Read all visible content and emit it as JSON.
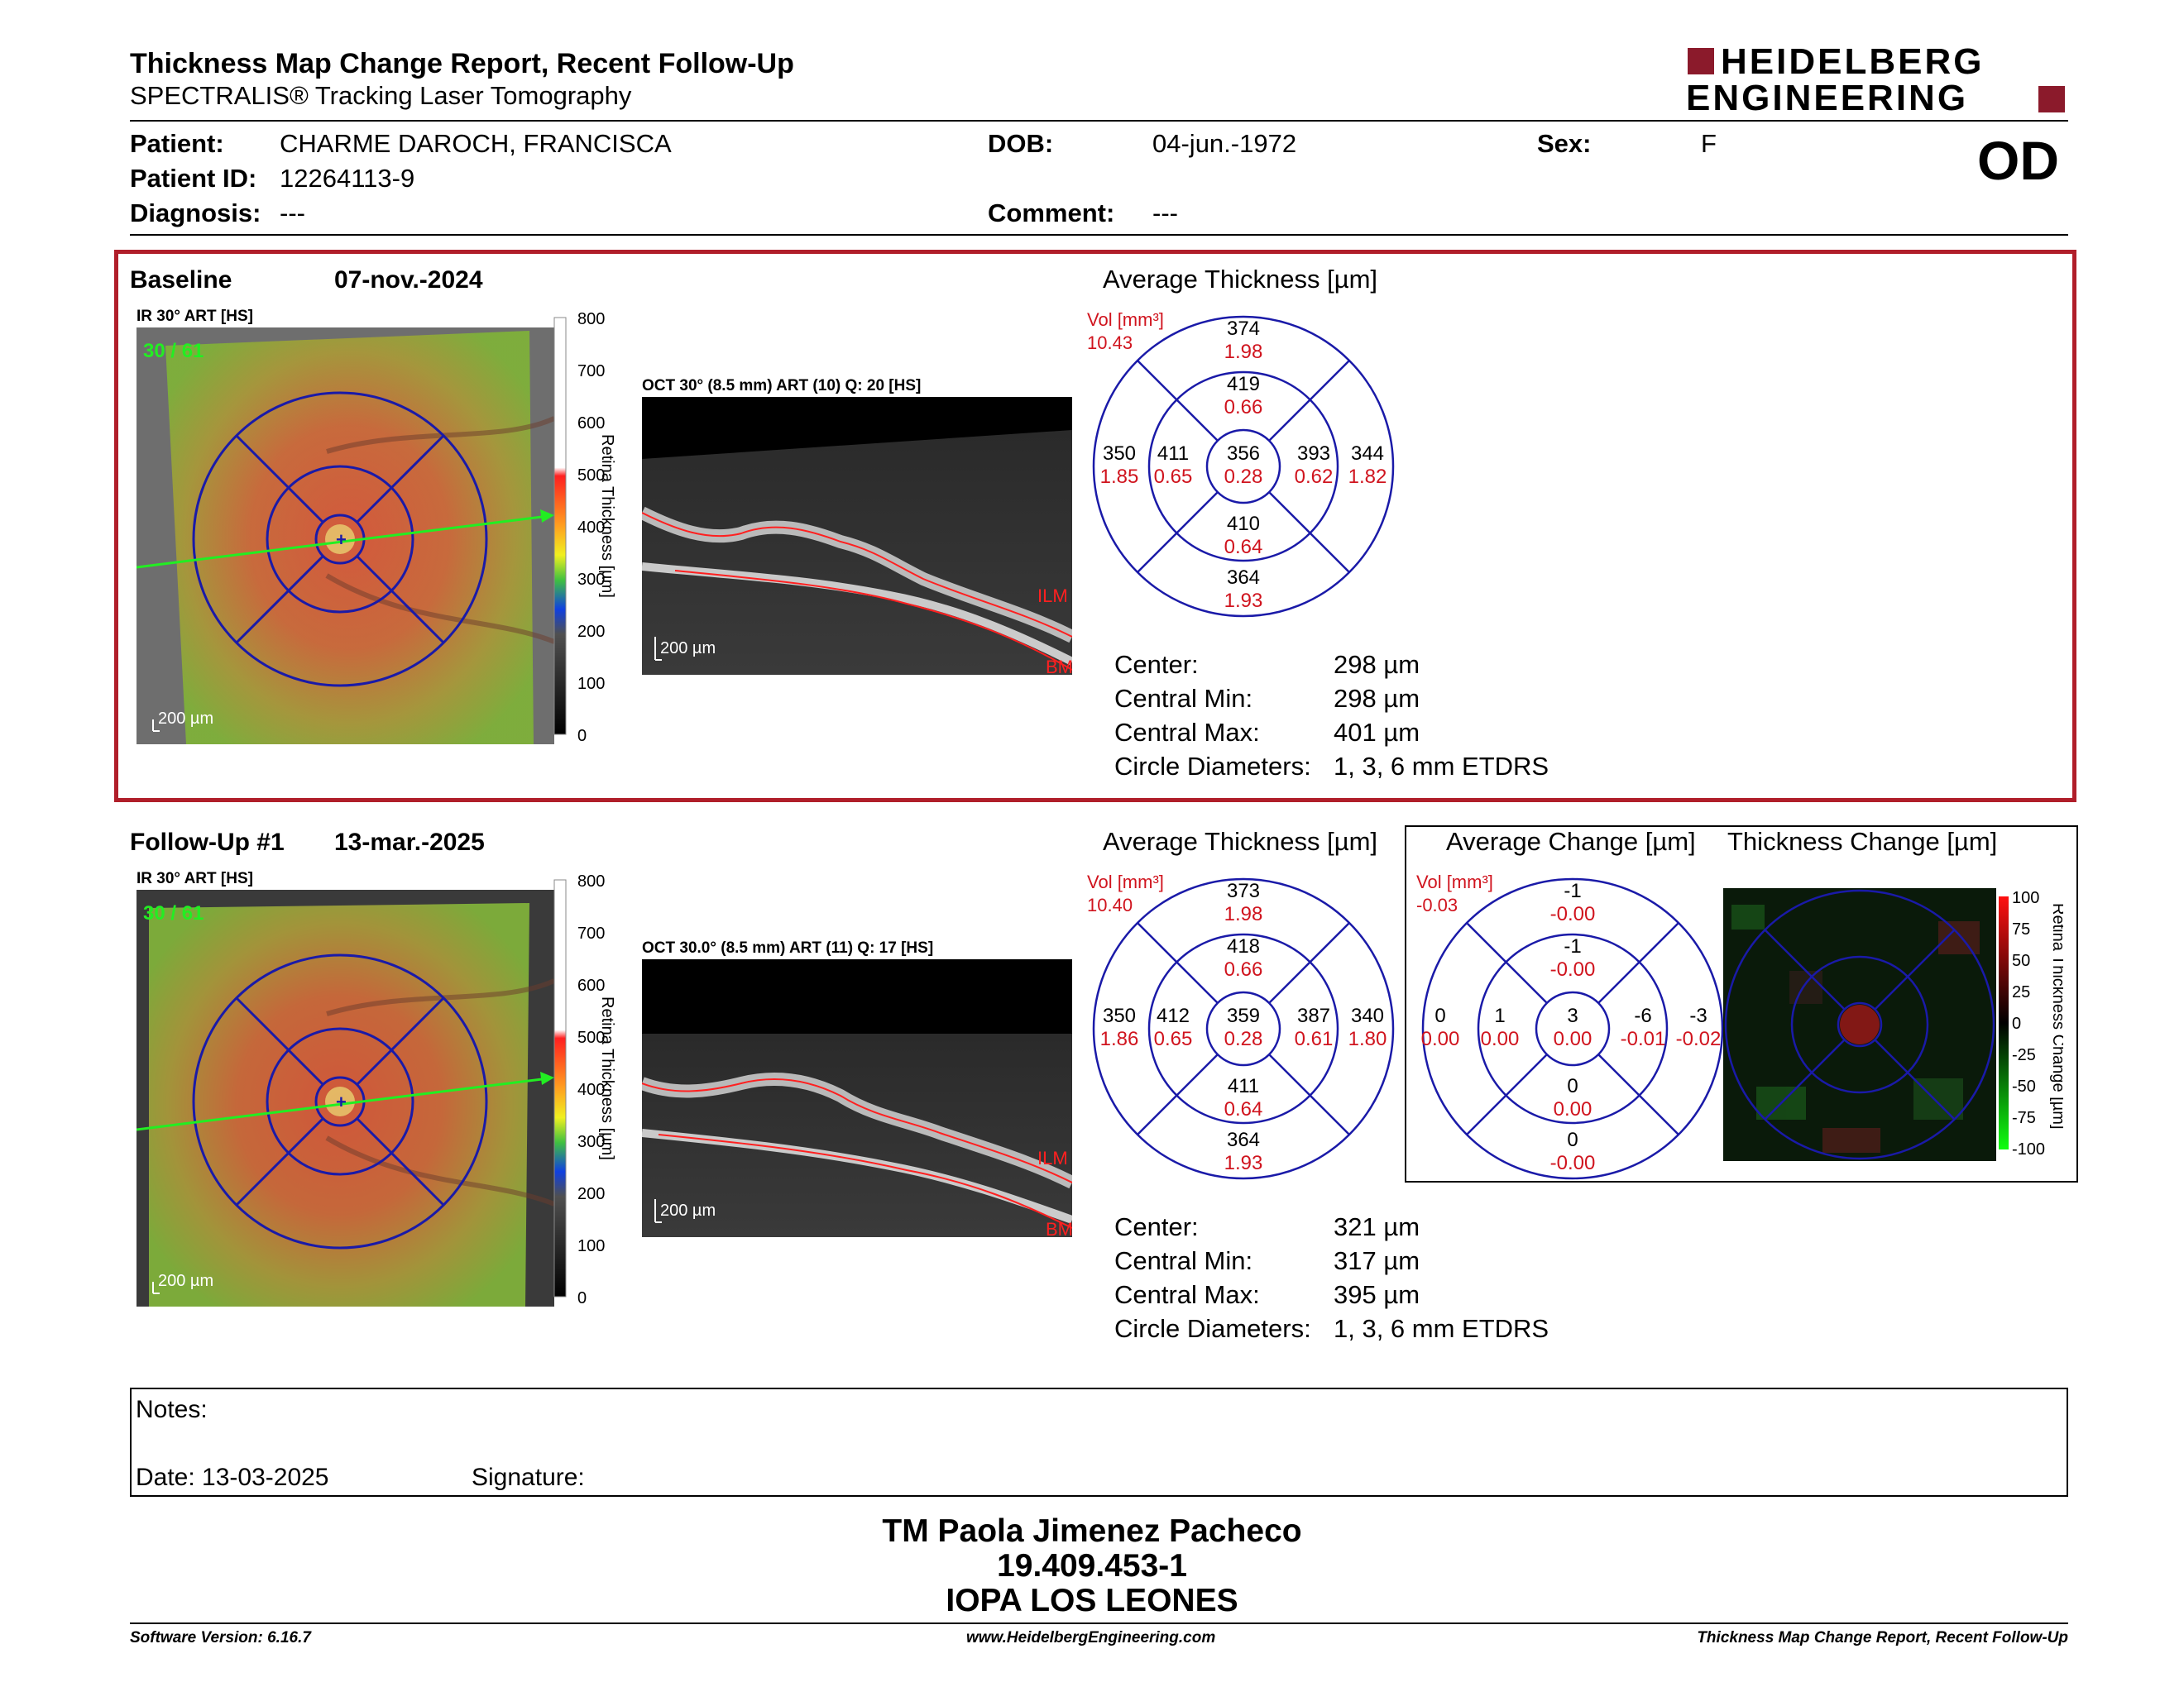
{
  "header": {
    "title": "Thickness Map Change Report, Recent Follow-Up",
    "subtitle": "SPECTRALIS® Tracking Laser Tomography",
    "logo_line1": "HEIDELBERG",
    "logo_line2": "ENGINEERING",
    "eye": "OD"
  },
  "patient": {
    "patient_label": "Patient:",
    "patient": "CHARME DAROCH, FRANCISCA",
    "id_label": "Patient ID:",
    "id": "12264113-9",
    "diagnosis_label": "Diagnosis:",
    "diagnosis": "---",
    "dob_label": "DOB:",
    "dob": "04-jun.-1972",
    "comment_label": "Comment:",
    "comment": "---",
    "sex_label": "Sex:",
    "sex": "F"
  },
  "baseline": {
    "label": "Baseline",
    "date": "07-nov.-2024",
    "ir_label": "IR 30° ART [HS]",
    "ir_count": "30 / 61",
    "oct_label": "OCT 30° (8.5 mm) ART (10) Q: 20 [HS]",
    "scale": "200 µm",
    "avg_title": "Average Thickness [µm]",
    "vol_label": "Vol [mm³]",
    "vol": "10.43",
    "sectors": {
      "outer_top": [
        "374",
        "1.98"
      ],
      "inner_top": [
        "419",
        "0.66"
      ],
      "outer_left": [
        "350",
        "1.85"
      ],
      "inner_left": [
        "411",
        "0.65"
      ],
      "center": [
        "356",
        "0.28"
      ],
      "inner_right": [
        "393",
        "0.62"
      ],
      "outer_right": [
        "344",
        "1.82"
      ],
      "inner_bottom": [
        "410",
        "0.64"
      ],
      "outer_bottom": [
        "364",
        "1.93"
      ]
    },
    "stats": {
      "center_k": "Center:",
      "center_v": "298 µm",
      "min_k": "Central Min:",
      "min_v": "298 µm",
      "max_k": "Central Max:",
      "max_v": "401 µm",
      "diam_k": "Circle Diameters:",
      "diam_v": "1, 3, 6 mm ETDRS"
    }
  },
  "followup": {
    "label": "Follow-Up #1",
    "date": "13-mar.-2025",
    "ir_label": "IR 30° ART [HS]",
    "ir_count": "30 / 61",
    "oct_label": "OCT 30.0° (8.5 mm) ART (11) Q: 17 [HS]",
    "scale": "200 µm",
    "avg_title": "Average Thickness [µm]",
    "vol_label": "Vol [mm³]",
    "vol": "10.40",
    "sectors": {
      "outer_top": [
        "373",
        "1.98"
      ],
      "inner_top": [
        "418",
        "0.66"
      ],
      "outer_left": [
        "350",
        "1.86"
      ],
      "inner_left": [
        "412",
        "0.65"
      ],
      "center": [
        "359",
        "0.28"
      ],
      "inner_right": [
        "387",
        "0.61"
      ],
      "outer_right": [
        "340",
        "1.80"
      ],
      "inner_bottom": [
        "411",
        "0.64"
      ],
      "outer_bottom": [
        "364",
        "1.93"
      ]
    },
    "stats": {
      "center_k": "Center:",
      "center_v": "321 µm",
      "min_k": "Central Min:",
      "min_v": "317 µm",
      "max_k": "Central Max:",
      "max_v": "395 µm",
      "diam_k": "Circle Diameters:",
      "diam_v": "1, 3, 6 mm ETDRS"
    }
  },
  "change": {
    "avg_title": "Average Change [µm]",
    "map_title": "Thickness Change [µm]",
    "vol_label": "Vol [mm³]",
    "vol": "-0.03",
    "sectors": {
      "outer_top": [
        "-1",
        "-0.00"
      ],
      "inner_top": [
        "-1",
        "-0.00"
      ],
      "outer_left": [
        "0",
        "0.00"
      ],
      "inner_left": [
        "1",
        "0.00"
      ],
      "center": [
        "3",
        "0.00"
      ],
      "inner_right": [
        "-6",
        "-0.01"
      ],
      "outer_right": [
        "-3",
        "-0.02"
      ],
      "inner_bottom": [
        "0",
        "0.00"
      ],
      "outer_bottom": [
        "0",
        "-0.00"
      ]
    },
    "scale_ticks": [
      "100",
      "75",
      "50",
      "25",
      "0",
      "-25",
      "-50",
      "-75",
      "-100"
    ],
    "scale_label": "Retina Thickness Change [µm]"
  },
  "thickness_scale": {
    "ticks": [
      "800",
      "700",
      "600",
      "500",
      "400",
      "300",
      "200",
      "100",
      "0"
    ],
    "label": "Retina Thickness [µm]"
  },
  "oct_markers": {
    "ilm": "ILM",
    "bm": "BM"
  },
  "notes": {
    "label": "Notes:",
    "date": "Date: 13-03-2025",
    "signature": "Signature:"
  },
  "signoff": {
    "name": "TM Paola Jimenez Pacheco",
    "rut": "19.409.453-1",
    "org": "IOPA LOS LEONES"
  },
  "footer": {
    "version": "Software Version: 6.16.7",
    "url": "www.HeidelbergEngineering.com",
    "report": "Thickness Map Change Report, Recent Follow-Up"
  },
  "colors": {
    "red_values": "#d0141e",
    "etdrs_blue": "#1a1aa8",
    "frame_red": "#b01e2a",
    "logo_red": "#8b1a2b"
  }
}
